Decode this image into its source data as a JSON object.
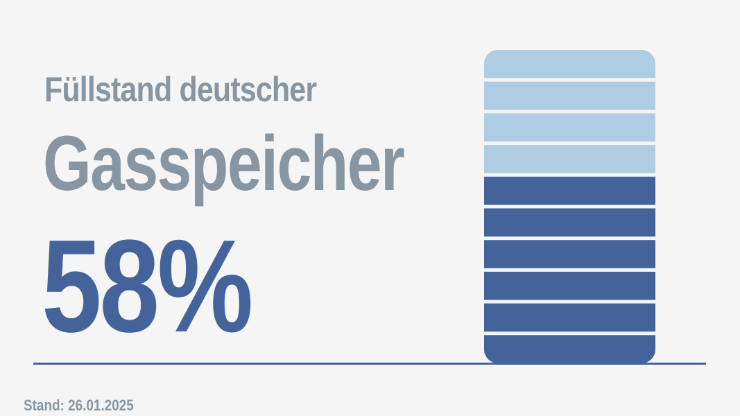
{
  "title": {
    "line1": "Füllstand deutscher",
    "line2": "Gasspeicher"
  },
  "value_label": "58%",
  "footer": "Stand: 26.01.2025",
  "chart_data": {
    "type": "gauge",
    "value": 58,
    "unit": "%",
    "segments_total": 10,
    "segments_filled": 6,
    "colors": {
      "filled": "#44639a",
      "empty": "#aecde2",
      "text_title": "#8896a2",
      "text_value": "#44639a"
    }
  }
}
